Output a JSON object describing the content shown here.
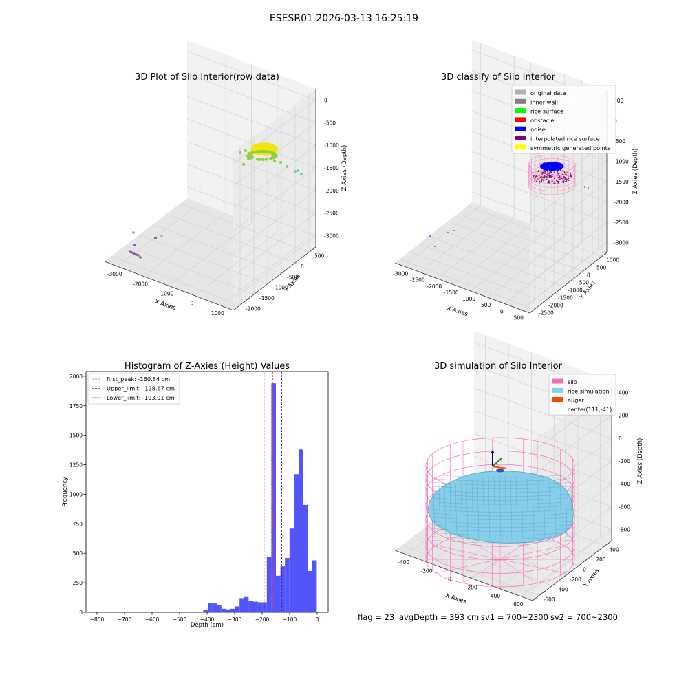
{
  "figure": {
    "suptitle": "ESESR01 2026-03-13 16:25:19",
    "footer": {
      "flag": "flag = 23",
      "avg_depth": "avgDepth = 393 cm",
      "sv1": "sv1 = 700~2300",
      "sv2": "sv2 = 700~2300"
    }
  },
  "colors": {
    "pane": "#f2f2f2",
    "pane_dark": "#e6e6e6",
    "grid": "#d4d4d4",
    "rice_yellow": "#f0e612",
    "rice_green": "#8fd13a",
    "noise_blue": "#0000ff",
    "interp_purple": "#8b0a6e",
    "silo_pink": "#ff69b4",
    "rice_sim": "#87ceeb",
    "auger": "#ff4500",
    "hist_bar": "#5454fb",
    "peak_line": "#ff3333",
    "limit_line": "#1a1acc"
  },
  "chart_data": [
    {
      "type": "scatter",
      "title": "3D Plot of Silo Interior(row data)",
      "xlabel": "X Axies",
      "ylabel": "Y Axies",
      "zlabel": "Z Axies (Depth)",
      "x_ticks": [
        "-3000",
        "-2000",
        "-1000",
        "0",
        "1000"
      ],
      "y_ticks": [
        "-2000",
        "-1500",
        "-1000",
        "-500",
        "0",
        "500"
      ],
      "z_ticks": [
        "-3000",
        "-2500",
        "-2000",
        "-1500",
        "-1000",
        "-500",
        "0"
      ],
      "xlim": [
        -3300,
        1100
      ],
      "ylim": [
        -2100,
        700
      ],
      "zlim": [
        -3200,
        100
      ],
      "grid": true
    },
    {
      "type": "scatter",
      "title": "3D classify of Silo Interior",
      "xlabel": "X Axies",
      "ylabel": "Y Axies",
      "zlabel": "Z Axies (Depth)",
      "x_ticks": [
        "-3000",
        "-2500",
        "-2000",
        "-1500",
        "-1000",
        "-500",
        "0",
        "500"
      ],
      "y_ticks": [
        "-2500",
        "-2000",
        "-1500",
        "-1000",
        "-500",
        "0",
        "500",
        "1000"
      ],
      "z_ticks": [
        "-3000",
        "-2500",
        "-2000",
        "-1500",
        "-1000",
        "-500",
        "0",
        "500"
      ],
      "xlim": [
        -3200,
        800
      ],
      "ylim": [
        -2700,
        1200
      ],
      "zlim": [
        -3200,
        600
      ],
      "grid": true,
      "legend": {
        "placement": "top-right",
        "entries": [
          {
            "label": "original data",
            "color": "#b0b0b0"
          },
          {
            "label": "inner wall",
            "color": "#808080"
          },
          {
            "label": "rice surface",
            "color": "#00ff00"
          },
          {
            "label": "obstacle",
            "color": "#ff0000"
          },
          {
            "label": "noise",
            "color": "#0000ff"
          },
          {
            "label": "interpolated rice surface",
            "color": "#800080"
          },
          {
            "label": "symmetric generated points",
            "color": "#ffff00"
          }
        ]
      }
    },
    {
      "type": "bar",
      "title": "Histogram of Z-Axies (Height) Values",
      "xlabel": "Depth (cm)",
      "ylabel": "Frequency",
      "xlim": [
        -840,
        40
      ],
      "ylim": [
        0,
        2040
      ],
      "x_ticks": [
        -800,
        -700,
        -600,
        -500,
        -400,
        -300,
        -200,
        -100,
        0
      ],
      "y_ticks": [
        0,
        250,
        500,
        750,
        1000,
        1250,
        1500,
        1750,
        2000
      ],
      "bin_width": 16.5,
      "bins_start": [
        -414,
        -397.5,
        -381,
        -364.5,
        -348,
        -331.5,
        -315,
        -298.5,
        -282,
        -265.5,
        -249,
        -232.5,
        -216,
        -199.5,
        -183,
        -166.5,
        -150,
        -133.5,
        -117,
        -100.5,
        -84,
        -67.5,
        -51,
        -34.5,
        -18
      ],
      "values": [
        20,
        80,
        75,
        60,
        30,
        25,
        30,
        50,
        120,
        130,
        95,
        90,
        85,
        85,
        470,
        1940,
        310,
        390,
        460,
        710,
        1170,
        1380,
        910,
        350,
        440
      ],
      "vlines": [
        {
          "label": "first_peak: -160.84 cm",
          "x": -160.84,
          "color": "#ff3333"
        },
        {
          "label": "Upper_limit: -128.67 cm",
          "x": -128.67,
          "color": "#1a1acc"
        },
        {
          "label": "Lower_limit: -193.01 cm",
          "x": -193.01,
          "color": "#1a1acc"
        }
      ],
      "legend": {
        "placement": "top-left"
      },
      "grid": false
    },
    {
      "type": "scatter",
      "title": "3D simulation of Silo Interior",
      "xlabel": "X Axies",
      "ylabel": "Y Axies",
      "zlabel": "Z Axies (Depth)",
      "x_ticks": [
        "-400",
        "-200",
        "0",
        "200",
        "400",
        "600"
      ],
      "y_ticks": [
        "-600",
        "-400",
        "-200",
        "0",
        "200",
        "400"
      ],
      "z_ticks": [
        "-800",
        "-600",
        "-400",
        "-200",
        "0",
        "200",
        "400"
      ],
      "xlim": [
        -500,
        700
      ],
      "ylim": [
        -700,
        500
      ],
      "zlim": [
        -900,
        450
      ],
      "grid": true,
      "legend": {
        "placement": "top-right",
        "entries": [
          {
            "label": "silo",
            "color": "#ff69b4"
          },
          {
            "label": "rice simulation",
            "color": "#87ceeb"
          },
          {
            "label": "auger",
            "color": "#ff4500"
          },
          {
            "label": "center(111,-41)",
            "color": ""
          }
        ]
      }
    }
  ]
}
